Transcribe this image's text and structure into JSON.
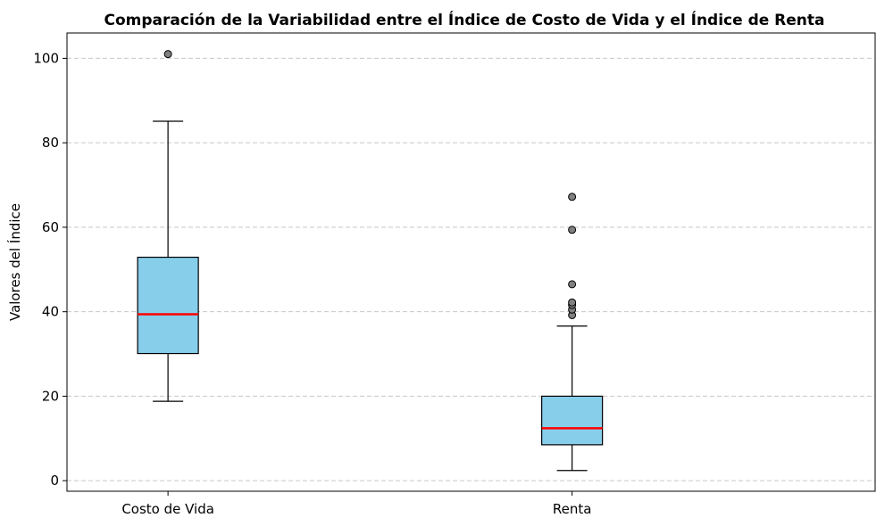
{
  "chart_data": {
    "type": "boxplot",
    "title": "Comparación de la Variabilidad entre el Índice de Costo de Vida y el Índice de Renta",
    "xlabel": "",
    "ylabel": "Valores del Índice",
    "categories": [
      "Costo de Vida",
      "Renta"
    ],
    "ylim": [
      -2.5,
      106
    ],
    "yticks": [
      0,
      20,
      40,
      60,
      80,
      100
    ],
    "grid": "y-dashed",
    "boxes": [
      {
        "category": "Costo de Vida",
        "whisker_low": 18.8,
        "q1": 30.1,
        "median": 39.4,
        "q3": 52.9,
        "whisker_high": 85.1,
        "outliers": [
          101.0
        ]
      },
      {
        "category": "Renta",
        "whisker_low": 2.4,
        "q1": 8.5,
        "median": 12.4,
        "q3": 20.0,
        "whisker_high": 36.6,
        "outliers": [
          39.2,
          40.5,
          41.6,
          42.2,
          46.5,
          59.4,
          67.2
        ]
      }
    ],
    "colors": {
      "box_fill": "#87ceeb",
      "median": "#ff0000",
      "outlier_fill": "#808080",
      "grid": "#c8c8c8"
    }
  }
}
